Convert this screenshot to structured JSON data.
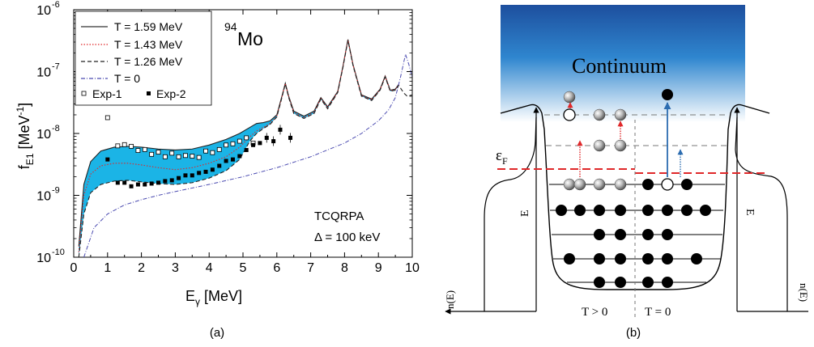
{
  "panel_a": {
    "caption": "(a)",
    "nucleus_mass": "94",
    "nucleus_symbol": "Mo",
    "method": "TCQRPA",
    "delta_label": "Δ = 100 keV",
    "xlabel_main": "E",
    "xlabel_sub": "γ",
    "xlabel_unit": " [MeV]",
    "ylabel_main": "f",
    "ylabel_sub": "E1",
    "ylabel_unit": " [MeV",
    "ylabel_exp": "-1",
    "ylabel_close": "]",
    "legend": [
      {
        "label": "T = 1.59 MeV",
        "style": "solid",
        "color": "#333333"
      },
      {
        "label": "T = 1.43 MeV",
        "style": "dotted",
        "color": "#e0282a"
      },
      {
        "label": "T = 1.26 MeV",
        "style": "dashed",
        "color": "#222222"
      },
      {
        "label": "T = 0",
        "style": "dashdot",
        "color": "#4a4ab0"
      }
    ],
    "exp_legend": [
      {
        "label": "Exp-1",
        "marker": "open-square"
      },
      {
        "label": "Exp-2",
        "marker": "filled-square"
      }
    ],
    "band_color": "#1bb4e6"
  },
  "chart_data": {
    "type": "line",
    "scale_y": "log",
    "xlim": [
      0,
      10
    ],
    "ylim": [
      1e-10,
      1e-06
    ],
    "x_ticks": [
      "0",
      "1",
      "2",
      "3",
      "4",
      "5",
      "6",
      "7",
      "8",
      "9",
      "10"
    ],
    "y_ticks": [
      {
        "base": "10",
        "exp": "-10"
      },
      {
        "base": "10",
        "exp": "-9"
      },
      {
        "base": "10",
        "exp": "-8"
      },
      {
        "base": "10",
        "exp": "-7"
      },
      {
        "base": "10",
        "exp": "-6"
      }
    ],
    "series": [
      {
        "name": "T = 1.59 MeV",
        "x": [
          0.15,
          0.3,
          0.5,
          0.8,
          1.2,
          1.6,
          2.0,
          2.5,
          3.0,
          3.5,
          4.0,
          4.5,
          4.9,
          5.2,
          5.4,
          5.6,
          5.8,
          6.0,
          6.15,
          6.25,
          6.35,
          6.5,
          6.8,
          7.1,
          7.3,
          7.5,
          7.8,
          7.95,
          8.1,
          8.25,
          8.5,
          8.8,
          9.05,
          9.2,
          9.35,
          9.5,
          9.6
        ],
        "y": [
          1.5e-10,
          1.5e-09,
          3.5e-09,
          5.2e-09,
          6e-09,
          6.2e-09,
          6e-09,
          5.6e-09,
          5.4e-09,
          5.6e-09,
          6.5e-09,
          8e-09,
          1e-08,
          1.25e-08,
          1.45e-08,
          1.5e-08,
          1.6e-08,
          2e-08,
          4e-08,
          6.5e-08,
          4e-08,
          2.3e-08,
          1.9e-08,
          2.3e-08,
          3.8e-08,
          2.7e-08,
          4.8e-08,
          1.2e-07,
          3.3e-07,
          1.3e-07,
          4.2e-08,
          3.6e-08,
          5.2e-08,
          8.5e-08,
          5e-08,
          5.2e-08,
          6.2e-08
        ]
      },
      {
        "name": "T = 1.43 MeV",
        "x": [
          0.15,
          0.3,
          0.5,
          0.8,
          1.2,
          1.6,
          2.0,
          2.5,
          3.0,
          3.5,
          4.0,
          4.5,
          4.9,
          5.2,
          5.4,
          5.6,
          5.8,
          6.0,
          6.15,
          6.25,
          6.35,
          6.5,
          6.8,
          7.1,
          7.3,
          7.5,
          7.8,
          7.95,
          8.1,
          8.25,
          8.5,
          8.8,
          9.05,
          9.2,
          9.35,
          9.5,
          9.6
        ],
        "y": [
          1.2e-10,
          1e-09,
          2.2e-09,
          3e-09,
          3.3e-09,
          3.3e-09,
          3.1e-09,
          2.8e-09,
          2.6e-09,
          2.8e-09,
          3.3e-09,
          4.2e-09,
          6e-09,
          8.8e-09,
          1.1e-08,
          1.25e-08,
          1.45e-08,
          1.9e-08,
          3.9e-08,
          6.4e-08,
          3.9e-08,
          2.2e-08,
          1.8e-08,
          2.2e-08,
          3.7e-08,
          2.6e-08,
          4.7e-08,
          1.2e-07,
          3.25e-07,
          1.28e-07,
          4.1e-08,
          3.5e-08,
          5.1e-08,
          8.3e-08,
          4.9e-08,
          5.1e-08,
          6.1e-08
        ]
      },
      {
        "name": "T = 1.26 MeV",
        "x": [
          0.15,
          0.3,
          0.5,
          0.8,
          1.2,
          1.6,
          2.0,
          2.5,
          3.0,
          3.5,
          4.0,
          4.5,
          4.9,
          5.2,
          5.4,
          5.6,
          5.8,
          6.0,
          6.15,
          6.25,
          6.35,
          6.5,
          6.8,
          7.1,
          7.3,
          7.5,
          7.8,
          7.95,
          8.1,
          8.25,
          8.5,
          8.8,
          9.05,
          9.2,
          9.35,
          9.5,
          9.6,
          9.75,
          9.85,
          10.0
        ],
        "y": [
          1e-10,
          5e-10,
          1.1e-09,
          1.5e-09,
          1.7e-09,
          1.75e-09,
          1.65e-09,
          1.55e-09,
          1.5e-09,
          1.6e-09,
          1.9e-09,
          2.5e-09,
          3.8e-09,
          7.5e-09,
          1e-08,
          1.2e-08,
          1.4e-08,
          1.85e-08,
          3.8e-08,
          6.3e-08,
          3.8e-08,
          2.1e-08,
          1.75e-08,
          2.1e-08,
          3.6e-08,
          2.5e-08,
          4.6e-08,
          1.15e-07,
          3.2e-07,
          1.25e-07,
          4e-08,
          3.4e-08,
          5e-08,
          8.2e-08,
          4.8e-08,
          5e-08,
          6e-08,
          4.5e-08,
          4e-08,
          4.2e-08
        ]
      },
      {
        "name": "T = 0",
        "x": [
          0.3,
          0.6,
          1.0,
          1.5,
          2.0,
          2.5,
          3.0,
          4.0,
          5.0,
          6.0,
          7.0,
          8.0,
          8.5,
          9.0,
          9.3,
          9.5,
          9.65,
          9.8,
          9.9,
          10.0
        ],
        "y": [
          1e-10,
          3e-10,
          5e-10,
          7e-10,
          8.5e-10,
          1e-09,
          1.15e-09,
          1.5e-09,
          2e-09,
          2.8e-09,
          4.2e-09,
          7e-09,
          1e-08,
          1.6e-08,
          2.4e-08,
          3.8e-08,
          8e-08,
          1.9e-07,
          1.3e-07,
          8e-08
        ]
      },
      {
        "name": "Exp-1",
        "x": [
          1.0,
          1.3,
          1.5,
          1.7,
          1.9,
          2.1,
          2.3,
          2.5,
          2.7,
          2.9,
          3.1,
          3.3,
          3.5,
          3.7,
          3.9,
          4.1,
          4.3,
          4.5,
          4.7,
          4.9,
          5.1,
          5.3
        ],
        "y": [
          1.8e-08,
          6.3e-09,
          6.6e-09,
          6.2e-09,
          5.3e-09,
          5.5e-09,
          4.6e-09,
          5e-09,
          4.2e-09,
          4.8e-09,
          4.2e-09,
          4.4e-09,
          4.3e-09,
          4.1e-09,
          5.2e-09,
          4.9e-09,
          5.5e-09,
          6.5e-09,
          6.8e-09,
          7.5e-09,
          8.5e-09,
          7e-09
        ]
      },
      {
        "name": "Exp-2",
        "x": [
          1.0,
          1.3,
          1.5,
          1.7,
          1.9,
          2.1,
          2.3,
          2.5,
          2.7,
          2.9,
          3.1,
          3.3,
          3.5,
          3.7,
          3.9,
          4.1,
          4.3,
          4.5,
          4.7,
          4.9,
          5.1,
          5.3,
          5.5,
          5.7,
          5.9,
          6.1,
          6.4
        ],
        "y": [
          3.8e-09,
          1.6e-09,
          1.6e-09,
          1.4e-09,
          1.5e-09,
          1.5e-09,
          1.55e-09,
          1.6e-09,
          1.7e-09,
          1.75e-09,
          1.9e-09,
          2.1e-09,
          2.1e-09,
          2.3e-09,
          2.4e-09,
          2.6e-09,
          3e-09,
          3.6e-09,
          3.8e-09,
          4.3e-09,
          5.4e-09,
          6.5e-09,
          7e-09,
          8.5e-09,
          7.5e-09,
          1.15e-08,
          8.5e-09
        ]
      }
    ]
  },
  "panel_b": {
    "caption": "(b)",
    "continuum": "Continuum",
    "fermi_main": "ε",
    "fermi_sub": "F",
    "energy_left": "E",
    "energy_right": "E",
    "occ_left": "n(E)",
    "occ_right": "n(E)",
    "t_gt": "T > 0",
    "t_eq": "T = 0"
  }
}
